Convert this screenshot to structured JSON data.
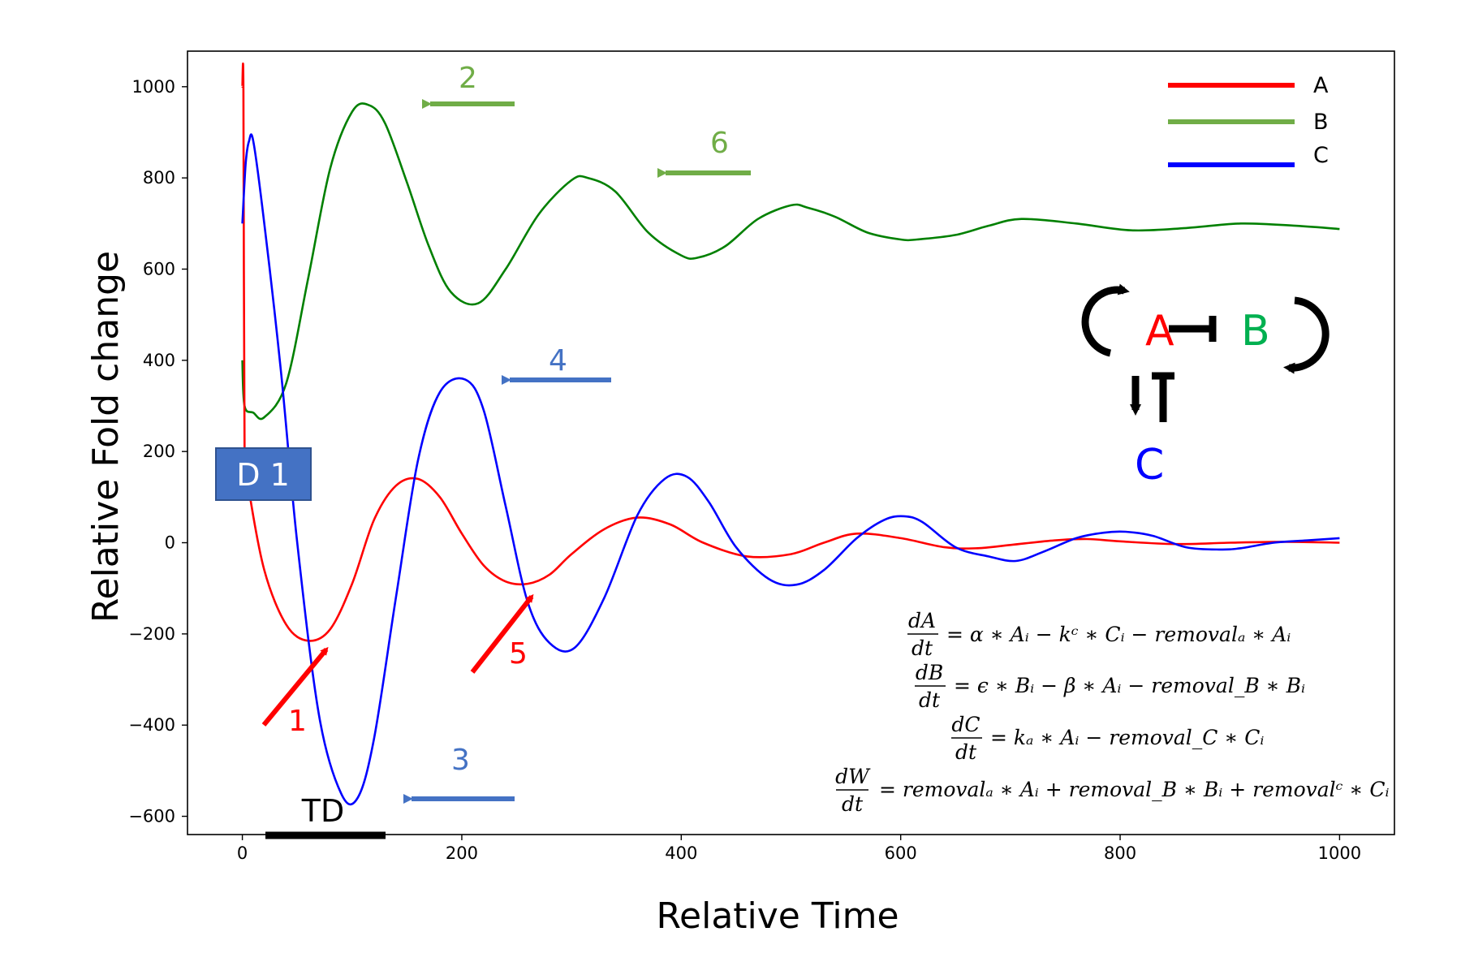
{
  "chart_data": {
    "type": "line",
    "title": "",
    "xlabel": "Relative Time",
    "ylabel": "Relative Fold change",
    "xlim": [
      -50,
      1050
    ],
    "ylim": [
      -640,
      1078
    ],
    "xticks": [
      0,
      200,
      400,
      600,
      800,
      1000
    ],
    "yticks": [
      -600,
      -400,
      -200,
      0,
      200,
      400,
      600,
      800,
      1000
    ],
    "ytick_labels": [
      "−600",
      "−400",
      "−200",
      "0",
      "200",
      "400",
      "600",
      "800",
      "1000"
    ],
    "legend_position": "top-right",
    "series": [
      {
        "name": "A",
        "color": "#ff0000",
        "x": [
          0,
          1,
          2,
          5,
          20,
          40,
          60,
          80,
          100,
          120,
          140,
          160,
          180,
          200,
          220,
          240,
          260,
          280,
          300,
          330,
          360,
          390,
          420,
          460,
          500,
          530,
          560,
          600,
          640,
          670,
          700,
          740,
          770,
          800,
          850,
          900,
          950,
          1000
        ],
        "y": [
          1000,
          990,
          210,
          130,
          -60,
          -180,
          -215,
          -190,
          -90,
          50,
          125,
          140,
          100,
          20,
          -50,
          -85,
          -90,
          -70,
          -25,
          30,
          55,
          40,
          0,
          -30,
          -25,
          0,
          20,
          10,
          -10,
          -12,
          -5,
          5,
          8,
          3,
          -3,
          0,
          2,
          0
        ]
      },
      {
        "name": "B",
        "color": "#008000",
        "x": [
          0,
          2,
          10,
          20,
          40,
          60,
          80,
          100,
          115,
          130,
          150,
          170,
          190,
          215,
          240,
          270,
          300,
          315,
          340,
          370,
          400,
          415,
          440,
          470,
          500,
          515,
          540,
          570,
          600,
          615,
          650,
          680,
          710,
          760,
          810,
          860,
          910,
          960,
          1000
        ],
        "y": [
          400,
          300,
          285,
          275,
          350,
          580,
          820,
          945,
          960,
          920,
          790,
          650,
          550,
          525,
          600,
          720,
          795,
          800,
          770,
          680,
          630,
          625,
          650,
          710,
          740,
          735,
          715,
          680,
          665,
          665,
          675,
          695,
          710,
          700,
          685,
          690,
          700,
          695,
          688
        ]
      },
      {
        "name": "C",
        "color": "#0000ff",
        "x": [
          0,
          3,
          6,
          10,
          20,
          35,
          50,
          70,
          90,
          105,
          120,
          140,
          160,
          180,
          203,
          220,
          240,
          260,
          280,
          303,
          330,
          360,
          385,
          405,
          425,
          450,
          480,
          505,
          530,
          560,
          585,
          603,
          620,
          650,
          680,
          705,
          730,
          760,
          785,
          805,
          830,
          860,
          890,
          910,
          940,
          970,
          1000
        ],
        "y": [
          700,
          830,
          880,
          880,
          700,
          380,
          0,
          -380,
          -550,
          -560,
          -430,
          -120,
          180,
          330,
          358,
          290,
          80,
          -130,
          -220,
          -230,
          -120,
          60,
          140,
          145,
          90,
          -10,
          -80,
          -92,
          -60,
          10,
          50,
          58,
          45,
          -10,
          -30,
          -40,
          -20,
          10,
          22,
          24,
          15,
          -10,
          -15,
          -12,
          0,
          5,
          10
        ]
      }
    ],
    "annotations": [
      {
        "label": "1",
        "color": "#ff0000"
      },
      {
        "label": "2",
        "color": "#70ad47"
      },
      {
        "label": "3",
        "color": "#4472c4"
      },
      {
        "label": "4",
        "color": "#4472c4"
      },
      {
        "label": "5",
        "color": "#ff0000"
      },
      {
        "label": "6",
        "color": "#70ad47"
      }
    ],
    "marker_box": {
      "label": "D 1",
      "color": "#4472c4"
    },
    "bar_label": "TD"
  },
  "network": {
    "node_a": {
      "label": "A",
      "color": "#ff0000"
    },
    "node_b": {
      "label": "B",
      "color": "#00b050"
    },
    "node_c": {
      "label": "C",
      "color": "#0000ff"
    }
  },
  "equations": {
    "dA_num": "dA",
    "dA_den": "dt",
    "dA_rhs": "= α ∗ Aᵢ − kᶜ ∗ Cᵢ − removalₐ ∗ Aᵢ",
    "dB_num": "dB",
    "dB_den": "dt",
    "dB_rhs": "= ϵ ∗ Bᵢ − β ∗ Aᵢ − removal_B ∗ Bᵢ",
    "dC_num": "dC",
    "dC_den": "dt",
    "dC_rhs": "= kₐ ∗ Aᵢ − removal_C ∗ Cᵢ",
    "dW_num": "dW",
    "dW_den": "dt",
    "dW_rhs": "= removalₐ ∗ Aᵢ + removal_B ∗ Bᵢ + removalᶜ ∗ Cᵢ"
  }
}
